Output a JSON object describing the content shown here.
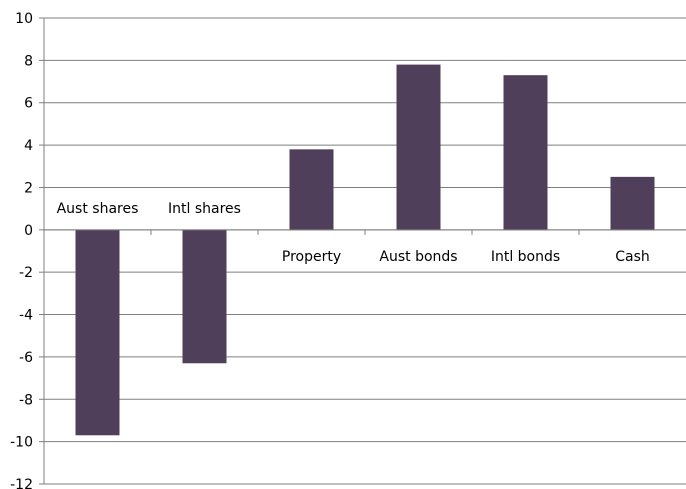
{
  "chart_data": {
    "type": "bar",
    "categories": [
      "Aust shares",
      "Intl shares",
      "Property",
      "Aust bonds",
      "Intl bonds",
      "Cash"
    ],
    "values": [
      -9.7,
      -6.3,
      3.8,
      7.8,
      7.3,
      2.5
    ],
    "ylim": [
      -12,
      10
    ],
    "yticks": [
      "10",
      "8",
      "6",
      "4",
      "2",
      "0",
      "-2",
      "-4",
      "-6",
      "-8",
      "-10",
      "-12"
    ],
    "grid": true,
    "legend": "none",
    "bar_color": "#4f3f5a"
  }
}
